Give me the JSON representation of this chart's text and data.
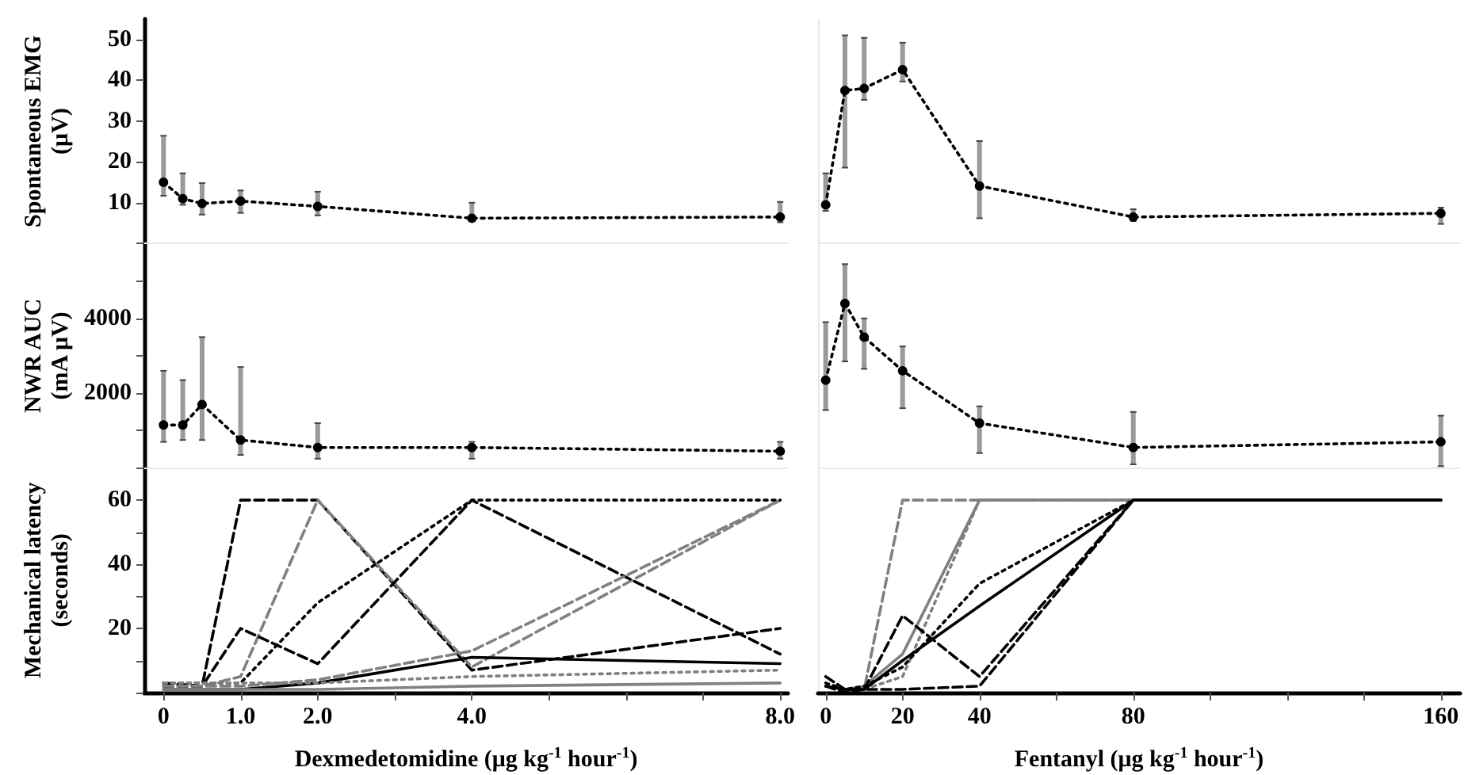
{
  "chart_data": [
    {
      "type": "line",
      "ylabel": "Spontaneous EMG\n(μV)",
      "x": [
        0,
        0.25,
        0.5,
        1,
        2,
        4,
        8
      ],
      "xlim": [
        -0.25,
        8.1
      ],
      "ylim": [
        0,
        55
      ],
      "yticks": [
        {
          "value": 0,
          "label": null
        },
        10,
        20,
        30,
        40,
        50
      ],
      "tick_labels": "y",
      "marker": "circle",
      "line_style": "dotted",
      "series": [
        {
          "color": "#000000",
          "values": [
            15,
            11,
            9.8,
            10.4,
            9.1,
            6.2,
            6.5
          ],
          "errors": [
            [
              11.7,
              26.4
            ],
            [
              9.5,
              17.2
            ],
            [
              7.1,
              14.8
            ],
            [
              7.5,
              13
            ],
            [
              6.9,
              12.7
            ],
            [
              5.5,
              10
            ],
            [
              5.2,
              10.2
            ]
          ]
        }
      ]
    },
    {
      "type": "line",
      "x": [
        0,
        5,
        10,
        20,
        40,
        80,
        160
      ],
      "xlim": [
        -2,
        165
      ],
      "ylim": [
        0,
        55
      ],
      "tick_labels": false,
      "marker": "circle",
      "line_style": "dotted",
      "series": [
        {
          "color": "#000000",
          "values": [
            9.5,
            37.5,
            38,
            42.6,
            14.1,
            6.5,
            7.4
          ],
          "errors": [
            [
              8,
              17.2
            ],
            [
              18.6,
              51
            ],
            [
              35.2,
              50.4
            ],
            [
              39.7,
              49.2
            ],
            [
              6.2,
              25.1
            ],
            [
              5.5,
              8.4
            ],
            [
              4.8,
              8.8
            ]
          ]
        }
      ]
    },
    {
      "type": "line",
      "ylabel": "NWR AUC\n(mA μV)",
      "x": [
        0,
        0.25,
        0.5,
        1,
        2,
        4,
        8
      ],
      "xlim": [
        -0.25,
        8.1
      ],
      "ylim": [
        0,
        6000
      ],
      "yticks": [
        {
          "value": 0,
          "label": null
        },
        {
          "value": 1000,
          "label": null
        },
        2000,
        {
          "value": 3000,
          "label": null
        },
        4000,
        {
          "value": 5000,
          "label": null
        }
      ],
      "tick_labels": "y",
      "marker": "circle",
      "line_style": "dotted",
      "series": [
        {
          "color": "#000000",
          "values": [
            1150,
            1150,
            1700,
            750,
            550,
            550,
            450
          ],
          "errors": [
            [
              700,
              2600
            ],
            [
              750,
              2350
            ],
            [
              750,
              3500
            ],
            [
              350,
              2700
            ],
            [
              250,
              1200
            ],
            [
              250,
              700
            ],
            [
              250,
              700
            ]
          ]
        }
      ]
    },
    {
      "type": "line",
      "x": [
        0,
        5,
        10,
        20,
        40,
        80,
        160
      ],
      "xlim": [
        -2,
        165
      ],
      "ylim": [
        0,
        6000
      ],
      "tick_labels": false,
      "marker": "circle",
      "line_style": "dotted",
      "series": [
        {
          "color": "#000000",
          "values": [
            2350,
            4400,
            3500,
            2600,
            1200,
            550,
            700
          ],
          "errors": [
            [
              1550,
              3900
            ],
            [
              2850,
              5450
            ],
            [
              2650,
              4000
            ],
            [
              1600,
              3250
            ],
            [
              400,
              1650
            ],
            [
              100,
              1500
            ],
            [
              50,
              1400
            ]
          ]
        }
      ]
    },
    {
      "type": "line",
      "ylabel": "Mechanical latency\n(seconds)",
      "xlabel": "Dexmedetomidine (μg kg$^{-1}$ hour$^{-1}$)",
      "x": [
        0,
        0.5,
        1,
        2,
        4,
        8
      ],
      "xlim": [
        -0.25,
        8.1
      ],
      "xticks": [
        0,
        {
          "value": 1,
          "label": "1.0"
        },
        {
          "value": 2,
          "label": "2.0"
        },
        {
          "value": 3,
          "label": null
        },
        {
          "value": 4,
          "label": "4.0"
        },
        {
          "value": 5,
          "label": null
        },
        {
          "value": 6,
          "label": null
        },
        {
          "value": 7,
          "label": null
        },
        {
          "value": 8,
          "label": "8.0"
        }
      ],
      "ylim": [
        0,
        70
      ],
      "yticks": [
        {
          "value": 0,
          "label": null
        },
        {
          "value": 10,
          "label": null
        },
        20,
        {
          "value": 30,
          "label": null
        },
        40,
        {
          "value": 50,
          "label": null
        },
        60,
        {
          "value": 70,
          "label": null
        }
      ],
      "marker": "none",
      "series": [
        {
          "color": "#000000",
          "line_style": "dashed",
          "values": [
            3,
            2,
            60,
            60,
            7,
            20
          ]
        },
        {
          "color": "#808080",
          "line_style": "dashed",
          "values": [
            2,
            2,
            5,
            60,
            8,
            60
          ]
        },
        {
          "color": "#000000",
          "line_style": "dotted",
          "values": [
            3,
            3,
            3,
            28,
            60,
            60
          ]
        },
        {
          "color": "#000000",
          "line_style": "dashed",
          "values": [
            2,
            2,
            20,
            9,
            60,
            12
          ]
        },
        {
          "color": "#808080",
          "line_style": "dashed",
          "values": [
            2,
            2,
            2,
            4,
            13,
            60
          ]
        },
        {
          "color": "#000000",
          "line_style": "solid",
          "values": [
            1,
            1,
            1,
            3,
            11,
            9
          ]
        },
        {
          "color": "#808080",
          "line_style": "dotted",
          "values": [
            3,
            3,
            3,
            3,
            5,
            7
          ]
        },
        {
          "color": "#808080",
          "line_style": "solid",
          "values": [
            1,
            1,
            1,
            1,
            2,
            3
          ]
        }
      ]
    },
    {
      "type": "line",
      "xlabel": "Fentanyl (μg kg$^{-1}$ hour$^{-1}$)",
      "x": [
        0,
        5,
        10,
        20,
        40,
        80,
        160
      ],
      "xlim": [
        -2,
        165
      ],
      "xticks": [
        0,
        20,
        40,
        {
          "value": 60,
          "label": null
        },
        80,
        {
          "value": 100,
          "label": null
        },
        {
          "value": 120,
          "label": null
        },
        {
          "value": 140,
          "label": null
        },
        160
      ],
      "ylim": [
        0,
        70
      ],
      "tick_labels": "x",
      "marker": "none",
      "series": [
        {
          "color": "#808080",
          "line_style": "dashed",
          "values": [
            2,
            1,
            1,
            60,
            60,
            60,
            60
          ]
        },
        {
          "color": "#808080",
          "line_style": "solid",
          "values": [
            2,
            1,
            2,
            12,
            60,
            60,
            60
          ]
        },
        {
          "color": "#808080",
          "line_style": "dotted",
          "values": [
            2,
            1,
            1,
            5,
            60,
            60,
            60
          ]
        },
        {
          "color": "#000000",
          "line_style": "dotted",
          "values": [
            3,
            1,
            2,
            8,
            34,
            60,
            60
          ]
        },
        {
          "color": "#000000",
          "line_style": "solid",
          "values": [
            2,
            1,
            1,
            10,
            27,
            60,
            60
          ]
        },
        {
          "color": "#000000",
          "line_style": "dashed",
          "values": [
            5,
            1,
            1,
            24,
            5,
            60,
            60
          ]
        },
        {
          "color": "#000000",
          "line_style": "dashed",
          "values": [
            2,
            0,
            1,
            1,
            2,
            60,
            60
          ]
        }
      ]
    }
  ]
}
